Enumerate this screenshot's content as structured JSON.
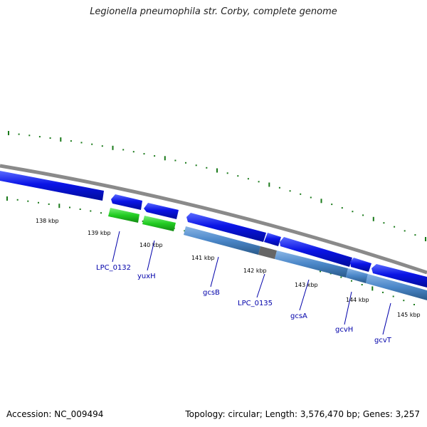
{
  "title": "Legionella pneumophila str. Corby, complete genome",
  "footer": {
    "accession": "Accession: NC_009494",
    "summary": "Topology: circular; Length: 3,576,470 bp; Genes: 3,257"
  },
  "colors": {
    "backbone": "#8a8a8a",
    "cds_forward": "#0a14e6",
    "gene_forward": "#22cc22",
    "cds_reverse_track": "#4a86c8",
    "gap": "#666666",
    "tick": "#1a7a1a",
    "label": "#0000aa"
  },
  "scale_ticks": [
    "138 kbp",
    "139 kbp",
    "140 kbp",
    "141 kbp",
    "142 kbp",
    "143 kbp",
    "144 kbp",
    "145 kbp"
  ],
  "genes": [
    "LPC_0132",
    "yuxH",
    "gcsB",
    "LPC_0135",
    "gcsA",
    "gcvH",
    "gcvT"
  ]
}
